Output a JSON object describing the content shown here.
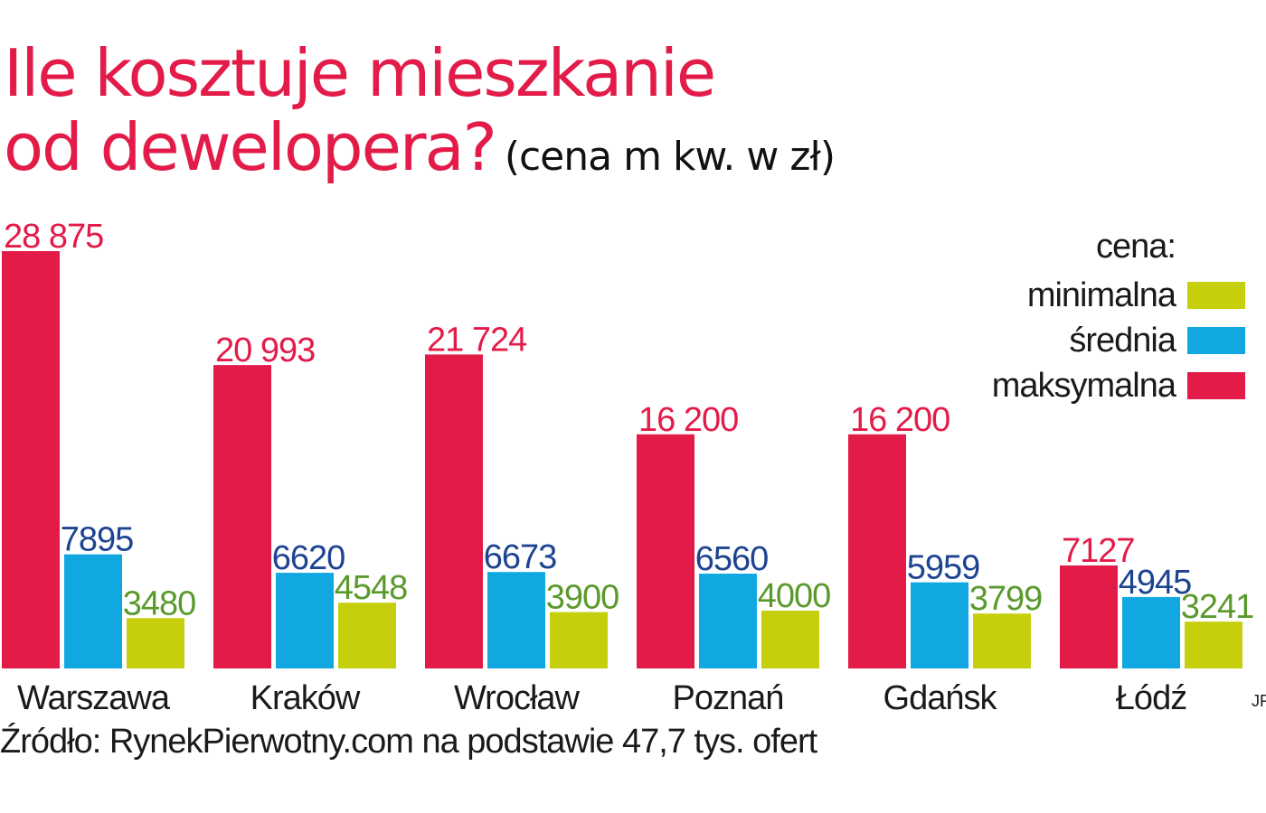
{
  "title_line1": "Ile kosztuje mieszkanie",
  "title_line2": "od dewelopera?",
  "subtitle": "(cena m kw. w zł)",
  "legend": {
    "title": "cena:",
    "items": [
      "minimalna",
      "średnia",
      "maksymalna"
    ]
  },
  "source": "Źródło: RynekPierwotny.com na podstawie 47,7 tys. ofert",
  "author": "JR",
  "colors": {
    "max": "#e31b49",
    "avg": "#11a8e2",
    "min": "#c6cf0b",
    "title": "#e31b49",
    "avg_label": "#1d4391",
    "min_label": "#5a9a2c"
  },
  "chart_data": {
    "type": "bar",
    "title": "Ile kosztuje mieszkanie od dewelopera? (cena m kw. w zł)",
    "categories": [
      "Warszawa",
      "Kraków",
      "Wrocław",
      "Poznań",
      "Gdańsk",
      "Łódź"
    ],
    "series": [
      {
        "name": "maksymalna",
        "key": "max",
        "values": [
          28875,
          20993,
          21724,
          16200,
          16200,
          7127
        ],
        "labels": [
          "28 875",
          "20 993",
          "21 724",
          "16 200",
          "16 200",
          "7127"
        ]
      },
      {
        "name": "średnia",
        "key": "avg",
        "values": [
          7895,
          6620,
          6673,
          6560,
          5959,
          4945
        ],
        "labels": [
          "7895",
          "6620",
          "6673",
          "6560",
          "5959",
          "4945"
        ]
      },
      {
        "name": "minimalna",
        "key": "min",
        "values": [
          3480,
          4548,
          3900,
          4000,
          3799,
          3241
        ],
        "labels": [
          "3480",
          "4548",
          "3900",
          "4000",
          "3799",
          "3241"
        ]
      }
    ],
    "ylim": [
      0,
      28875
    ],
    "xlabel": "",
    "ylabel": "",
    "grid": false,
    "legend_position": "top-right"
  }
}
